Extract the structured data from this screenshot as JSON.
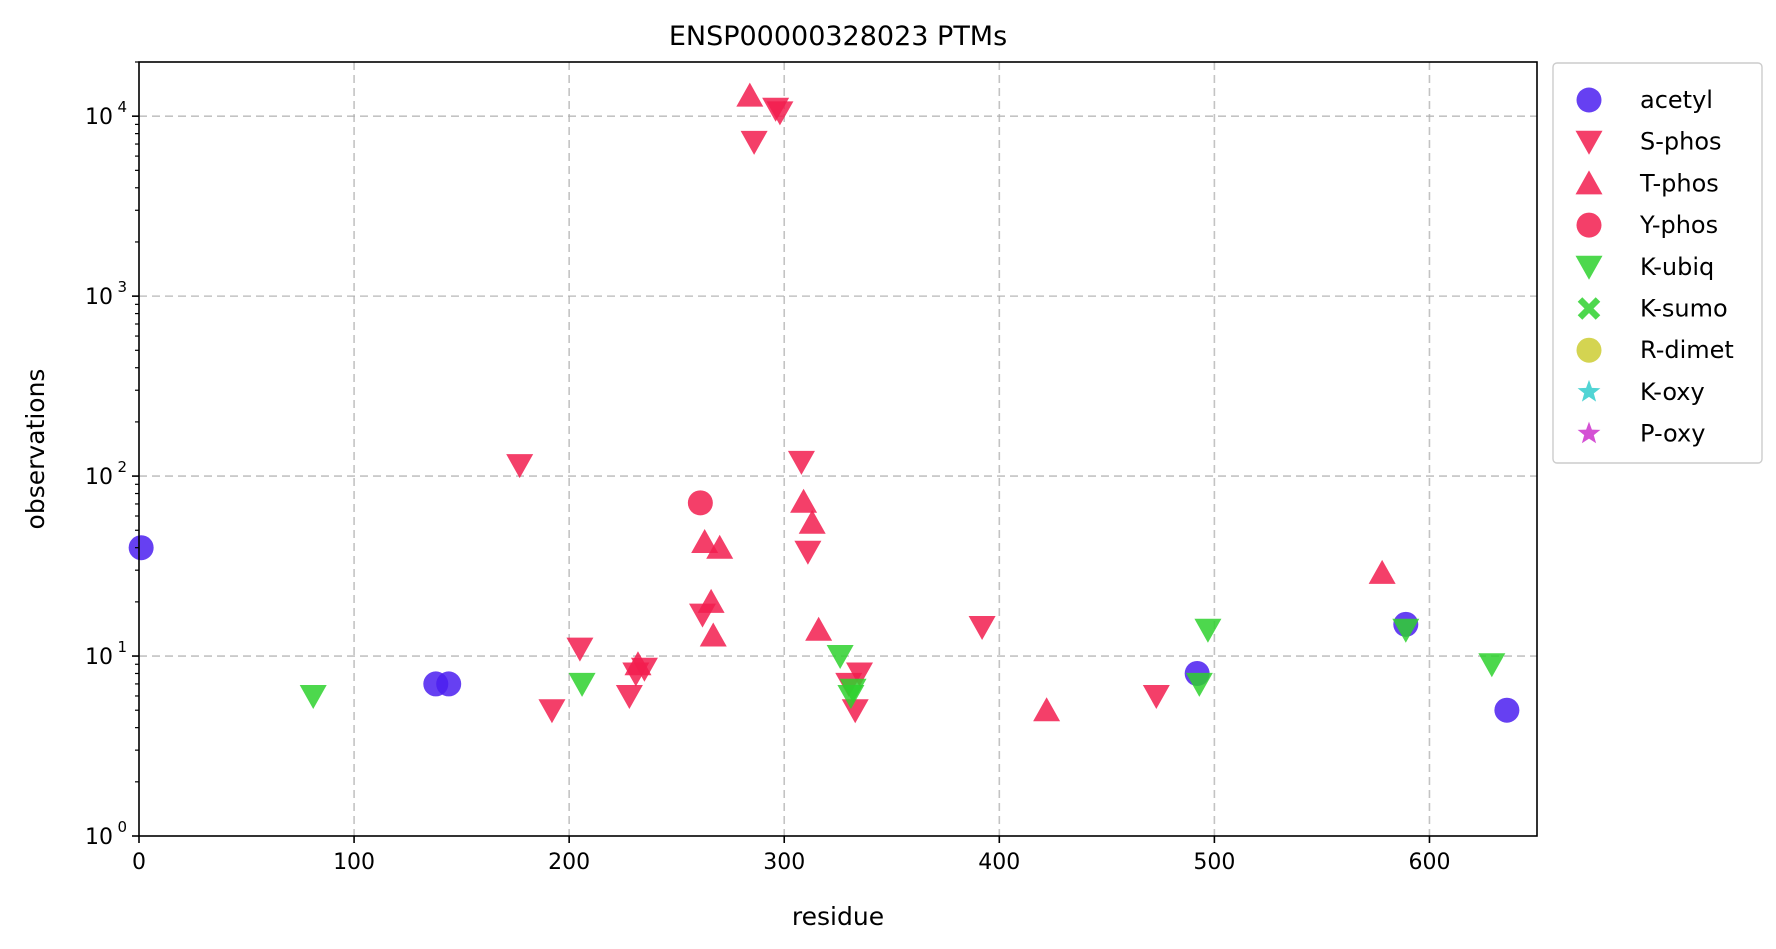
{
  "chart_data": {
    "type": "scatter",
    "title": "ENSP00000328023 PTMs",
    "xlabel": "residue",
    "ylabel": "observations",
    "xlim": [
      0,
      650
    ],
    "ylim": [
      1,
      20000
    ],
    "yscale": "log",
    "grid": true,
    "legend_position": "outside-right-top",
    "x_ticks": [
      0,
      100,
      200,
      300,
      400,
      500,
      600
    ],
    "y_ticks": [
      {
        "value": 1,
        "base": "10",
        "exp": "0"
      },
      {
        "value": 10,
        "base": "10",
        "exp": "1"
      },
      {
        "value": 100,
        "base": "10",
        "exp": "2"
      },
      {
        "value": 1000,
        "base": "10",
        "exp": "3"
      },
      {
        "value": 10000,
        "base": "10",
        "exp": "4"
      }
    ],
    "series": [
      {
        "name": "acetyl",
        "marker": "circle",
        "color": "#4b1ef0",
        "points": [
          [
            1,
            40
          ],
          [
            138,
            7
          ],
          [
            144,
            7
          ],
          [
            492,
            8
          ],
          [
            589,
            15
          ],
          [
            636,
            5
          ]
        ]
      },
      {
        "name": "S-phos",
        "marker": "triangle-down",
        "color": "#f21d4f",
        "points": [
          [
            177,
            115
          ],
          [
            192,
            5
          ],
          [
            205,
            11
          ],
          [
            228,
            6
          ],
          [
            231,
            8
          ],
          [
            235,
            8.5
          ],
          [
            262,
            17
          ],
          [
            286,
            7200
          ],
          [
            296,
            11000
          ],
          [
            298,
            10500
          ],
          [
            308,
            120
          ],
          [
            311,
            38
          ],
          [
            330,
            7
          ],
          [
            333,
            5
          ],
          [
            335,
            8
          ],
          [
            392,
            14.5
          ],
          [
            473,
            6
          ]
        ]
      },
      {
        "name": "T-phos",
        "marker": "triangle-up",
        "color": "#f21d4f",
        "points": [
          [
            232,
            9
          ],
          [
            263,
            43
          ],
          [
            266,
            20
          ],
          [
            267,
            13
          ],
          [
            270,
            40
          ],
          [
            284,
            13000
          ],
          [
            309,
            72
          ],
          [
            313,
            55
          ],
          [
            316,
            14
          ],
          [
            422,
            5
          ],
          [
            578,
            29
          ]
        ]
      },
      {
        "name": "Y-phos",
        "marker": "circle",
        "color": "#f21d4f",
        "points": [
          [
            261,
            71
          ]
        ]
      },
      {
        "name": "K-ubiq",
        "marker": "triangle-down",
        "color": "#2ed12e",
        "points": [
          [
            81,
            6
          ],
          [
            206,
            7
          ],
          [
            326,
            10
          ],
          [
            331,
            6
          ],
          [
            332,
            6.5
          ],
          [
            493,
            7
          ],
          [
            497,
            14
          ],
          [
            589,
            14
          ],
          [
            629,
            9
          ]
        ]
      },
      {
        "name": "K-sumo",
        "marker": "x",
        "color": "#2ed12e",
        "points": []
      },
      {
        "name": "R-dimet",
        "marker": "circle",
        "color": "#cccc33",
        "points": []
      },
      {
        "name": "K-oxy",
        "marker": "star",
        "color": "#33cccc",
        "points": []
      },
      {
        "name": "P-oxy",
        "marker": "star",
        "color": "#cc33cc",
        "points": []
      }
    ]
  }
}
